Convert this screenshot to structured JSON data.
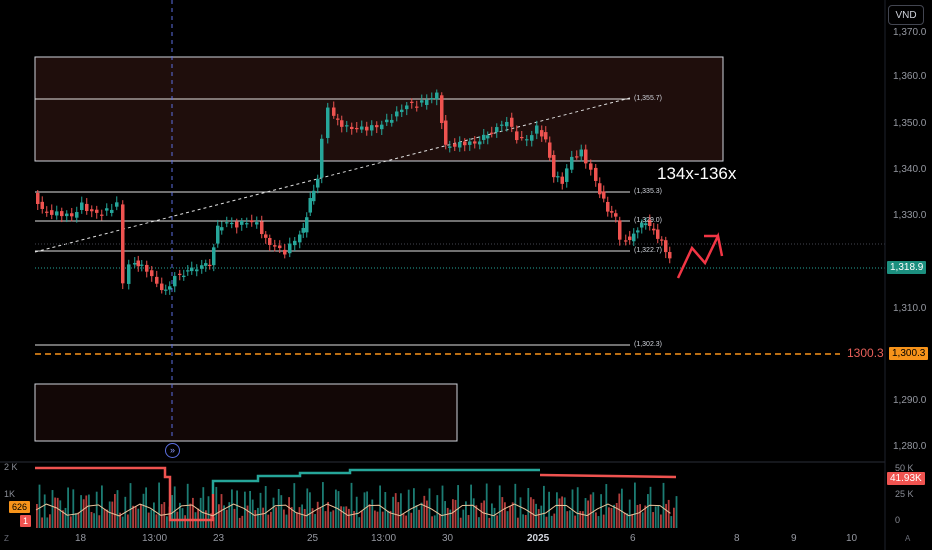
{
  "currency": "VND",
  "price_axis": [
    "1,370.0",
    "1,360.0",
    "1,350.0",
    "1,340.0",
    "1,330.0",
    "1,310.0",
    "1,290.0",
    "1,280.0"
  ],
  "time_axis": {
    "labels": [
      "18",
      "13:00",
      "23",
      "25",
      "13:00",
      "30",
      "2025",
      "6",
      "8",
      "9",
      "10"
    ],
    "bold_index": 6
  },
  "volume_axis": {
    "left": [
      "2 K",
      "1K"
    ],
    "right": [
      "50 K",
      "25 K",
      "0"
    ]
  },
  "volume_tags": {
    "left_orange": "626",
    "left_red": "1",
    "right_red": "41.93K"
  },
  "levels": [
    "(1,355.7)",
    "(1,335.3)",
    "(1,329.0)",
    "(1,322.7)",
    "(1,302.3)"
  ],
  "zone_label": "134x-136x",
  "target_price": "1300.3",
  "price_tags": {
    "current": "1,318.9",
    "target": "1,300.3"
  },
  "corner_labels": {
    "left": "Z",
    "right": "A"
  },
  "colors": {
    "up": "#26a69a",
    "down": "#ef5350",
    "zone_fill": "#1f0e0c",
    "orange": "#f7931a",
    "arrow": "#f23645"
  }
}
